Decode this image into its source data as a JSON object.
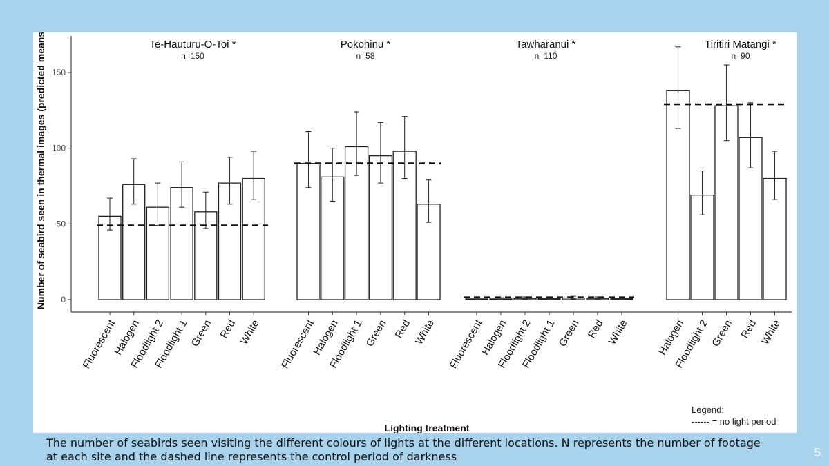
{
  "caption": "The number of seabirds seen visiting the different colours of lights at the different locations. N represents the number of footage at each site and the dashed line represents the control period of darkness",
  "slide_number": "5",
  "legend": {
    "title": "Legend:",
    "entry": "------ = no light period"
  },
  "chart_data": {
    "type": "bar",
    "ylabel": "Number of seabird seen in thermal images (predicted means",
    "xlabel": "Lighting treatment",
    "ylim": [
      0,
      175
    ],
    "yticks": [
      0,
      50,
      100,
      150
    ],
    "legend_placement": "bottom-right",
    "panels": [
      {
        "title": "Te-Hauturu-O-Toi *",
        "n": "n=150",
        "control": 49,
        "categories": [
          "Fluorescent",
          "Halogen",
          "Floodlight 2",
          "Floodlight 1",
          "Green",
          "Red",
          "White"
        ],
        "values": [
          55,
          76,
          61,
          74,
          58,
          77,
          80
        ],
        "err_low": [
          46,
          63,
          49,
          61,
          47,
          63,
          66
        ],
        "err_high": [
          67,
          93,
          77,
          91,
          71,
          94,
          98
        ]
      },
      {
        "title": "Pokohinu *",
        "n": "n=58",
        "control": 90,
        "categories": [
          "Fluorescent",
          "Halogen",
          "Floodlight 1",
          "Green",
          "Red",
          "White"
        ],
        "values": [
          90,
          81,
          101,
          95,
          98,
          63
        ],
        "err_low": [
          74,
          65,
          82,
          77,
          80,
          51
        ],
        "err_high": [
          111,
          100,
          124,
          117,
          121,
          79
        ]
      },
      {
        "title": "Tawharanui *",
        "n": "n=110",
        "control": 1.5,
        "categories": [
          "Fluorescent",
          "Halogen",
          "Floodlight 2",
          "Floodlight 1",
          "Green",
          "Red",
          "White"
        ],
        "values": [
          0.5,
          0.5,
          0.8,
          0.6,
          1.0,
          0.8,
          0.6
        ],
        "err_low": [
          0.2,
          0.2,
          0.3,
          0.2,
          0.4,
          0.3,
          0.2
        ],
        "err_high": [
          1.2,
          1.2,
          1.8,
          1.4,
          2.2,
          1.8,
          1.4
        ]
      },
      {
        "title": "Tiritiri Matangi *",
        "n": "n=90",
        "control": 129,
        "categories": [
          "Halogen",
          "Floodlight 2",
          "Green",
          "Red",
          "White"
        ],
        "values": [
          138,
          69,
          128,
          107,
          80
        ],
        "err_low": [
          113,
          56,
          105,
          87,
          66
        ],
        "err_high": [
          167,
          85,
          155,
          130,
          98
        ]
      }
    ]
  }
}
